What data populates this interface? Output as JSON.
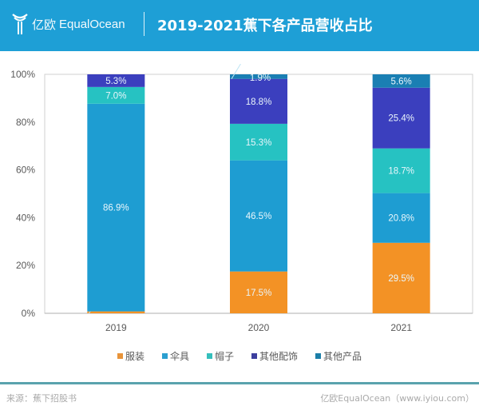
{
  "header": {
    "logo_cn": "亿欧",
    "logo_en": "EqualOcean",
    "title": "2019-2021蕉下各产品营收占比"
  },
  "colors": {
    "header_bg": "#1e9fd6",
    "apparel": "#f39225",
    "umbrella": "#1e9dd2",
    "hat": "#26c2c2",
    "other_accessories": "#3b3fbe",
    "other_products": "#1a7fb3"
  },
  "chart_data": {
    "type": "bar",
    "stacked": true,
    "title": "2019-2021蕉下各产品营收占比",
    "xlabel": "",
    "ylabel": "",
    "categories": [
      "2019",
      "2020",
      "2021"
    ],
    "ylim": [
      0,
      100
    ],
    "yticks": [
      "0%",
      "20%",
      "40%",
      "60%",
      "80%",
      "100%"
    ],
    "grid": false,
    "legend_position": "bottom",
    "series": [
      {
        "name": "服装",
        "color": "#f39225",
        "values": [
          0.8,
          17.5,
          29.5
        ],
        "labels": [
          "0.8%",
          "17.5%",
          "29.5%"
        ]
      },
      {
        "name": "伞具",
        "color": "#1e9dd2",
        "values": [
          86.9,
          46.5,
          20.8
        ],
        "labels": [
          "86.9%",
          "46.5%",
          "20.8%"
        ]
      },
      {
        "name": "帽子",
        "color": "#26c2c2",
        "values": [
          7.0,
          15.3,
          18.7
        ],
        "labels": [
          "7.0%",
          "15.3%",
          "18.7%"
        ]
      },
      {
        "name": "其他配饰",
        "color": "#3b3fbe",
        "values": [
          5.3,
          18.8,
          25.4
        ],
        "labels": [
          "5.3%",
          "18.8%",
          "25.4%"
        ]
      },
      {
        "name": "其他产品",
        "color": "#1a7fb3",
        "values": [
          0.0,
          1.9,
          5.6
        ],
        "labels": [
          "",
          "1.9%",
          "5.6%"
        ]
      }
    ]
  },
  "legend": [
    {
      "label": "服装",
      "color": "#e8943a"
    },
    {
      "label": "伞具",
      "color": "#2b9fd0"
    },
    {
      "label": "帽子",
      "color": "#35bfbc"
    },
    {
      "label": "其他配饰",
      "color": "#3c3f9e"
    },
    {
      "label": "其他产品",
      "color": "#1b7ea8"
    }
  ],
  "footer": {
    "source": "来源：蕉下招股书",
    "credit": "亿欧EqualOcean（www.iyiou.com）"
  }
}
